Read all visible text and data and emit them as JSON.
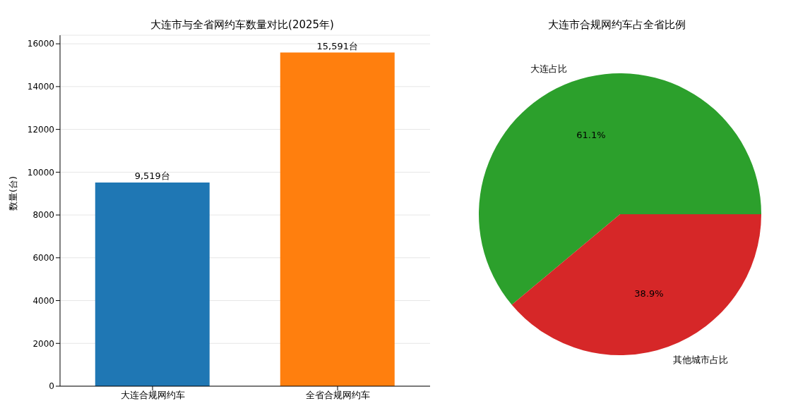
{
  "chart_data": [
    {
      "type": "bar",
      "title": "大连市与全省网约车数量对比(2025年)",
      "ylabel": "数量(台)",
      "categories": [
        "大连合规网约车",
        "全省合规网约车"
      ],
      "values": [
        9519,
        15591
      ],
      "colors": [
        "#1f77b4",
        "#ff7f0e"
      ],
      "value_labels": [
        "9,519台",
        "15,591台"
      ],
      "ylim": [
        0,
        16400
      ],
      "yticks": [
        0,
        2000,
        4000,
        6000,
        8000,
        10000,
        12000,
        14000,
        16000
      ],
      "grid": "y"
    },
    {
      "type": "pie",
      "title": "大连市合规网约车占全省比例",
      "categories": [
        "大连占比",
        "其他城市占比"
      ],
      "values": [
        61.1,
        38.9
      ],
      "colors": [
        "#2ca02c",
        "#d62728"
      ],
      "value_labels": [
        "61.1%",
        "38.9%"
      ]
    }
  ]
}
